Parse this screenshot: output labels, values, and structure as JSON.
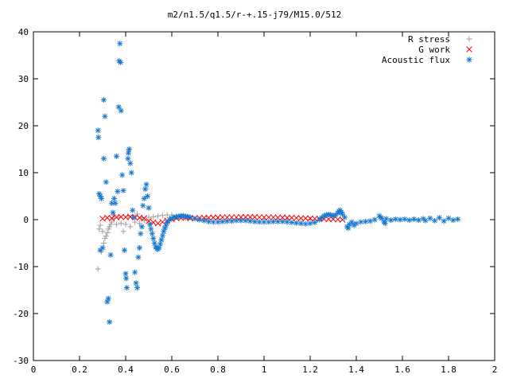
{
  "chart_data": {
    "type": "scatter",
    "title": "m2/n1.5/q1.5/r-+.15-j79/M15.0/512",
    "xlabel": "",
    "ylabel": "",
    "xlim": [
      0,
      2
    ],
    "ylim": [
      -30,
      40
    ],
    "x_ticks": [
      {
        "value": 0,
        "label": "0"
      },
      {
        "value": 0.2,
        "label": "0.2"
      },
      {
        "value": 0.4,
        "label": "0.4"
      },
      {
        "value": 0.6,
        "label": "0.6"
      },
      {
        "value": 0.8,
        "label": "0.8"
      },
      {
        "value": 1,
        "label": "1"
      },
      {
        "value": 1.2,
        "label": "1.2"
      },
      {
        "value": 1.4,
        "label": "1.4"
      },
      {
        "value": 1.6,
        "label": "1.6"
      },
      {
        "value": 1.8,
        "label": "1.8"
      },
      {
        "value": 2,
        "label": "2"
      }
    ],
    "y_ticks": [
      {
        "value": 40,
        "label": "40"
      },
      {
        "value": 30,
        "label": "30"
      },
      {
        "value": 20,
        "label": "20"
      },
      {
        "value": 10,
        "label": "10"
      },
      {
        "value": 0,
        "label": "0"
      },
      {
        "value": -10,
        "label": "-10"
      },
      {
        "value": -20,
        "label": "-20"
      },
      {
        "value": -30,
        "label": "-30"
      }
    ],
    "grid": false,
    "legend_position": "top-right",
    "series": [
      {
        "name": "R stress",
        "marker": "plus",
        "color": "#a0a0a0",
        "points": [
          [
            0.28,
            -10.5
          ],
          [
            0.285,
            -2.0
          ],
          [
            0.29,
            -1.2
          ],
          [
            0.295,
            -6.8
          ],
          [
            0.3,
            -2.5
          ],
          [
            0.305,
            -5.0
          ],
          [
            0.31,
            -4.0
          ],
          [
            0.315,
            -3.5
          ],
          [
            0.32,
            -2.8
          ],
          [
            0.325,
            -2.0
          ],
          [
            0.33,
            -1.5
          ],
          [
            0.335,
            -1.0
          ],
          [
            0.34,
            -0.5
          ],
          [
            0.345,
            0.3
          ],
          [
            0.35,
            1.0
          ],
          [
            0.36,
            -1.0
          ],
          [
            0.37,
            0.5
          ],
          [
            0.38,
            -0.8
          ],
          [
            0.39,
            -2.5
          ],
          [
            0.4,
            -1.0
          ],
          [
            0.41,
            0.8
          ],
          [
            0.42,
            -1.5
          ],
          [
            0.43,
            0.5
          ],
          [
            0.44,
            -0.5
          ],
          [
            0.45,
            1.2
          ],
          [
            0.46,
            -0.8
          ],
          [
            0.47,
            0.4
          ],
          [
            0.48,
            -0.2
          ],
          [
            0.5,
            0.5
          ],
          [
            0.52,
            0.6
          ],
          [
            0.54,
            0.8
          ],
          [
            0.56,
            0.9
          ],
          [
            0.58,
            1.0
          ],
          [
            0.6,
            1.0
          ],
          [
            0.62,
            0.8
          ],
          [
            0.64,
            0.5
          ],
          [
            0.66,
            0.3
          ],
          [
            0.7,
            0.2
          ],
          [
            0.75,
            0.2
          ],
          [
            0.8,
            0.1
          ],
          [
            0.9,
            0.1
          ],
          [
            1.0,
            0.1
          ],
          [
            1.1,
            0.0
          ],
          [
            1.2,
            0.0
          ]
        ]
      },
      {
        "name": "G work",
        "marker": "cross",
        "color": "#ff0000",
        "points": [
          [
            0.3,
            0.2
          ],
          [
            0.32,
            0.4
          ],
          [
            0.34,
            0.3
          ],
          [
            0.36,
            0.5
          ],
          [
            0.38,
            0.6
          ],
          [
            0.4,
            0.5
          ],
          [
            0.42,
            0.6
          ],
          [
            0.44,
            0.5
          ],
          [
            0.46,
            0.4
          ],
          [
            0.48,
            0.3
          ],
          [
            0.5,
            -0.3
          ],
          [
            0.52,
            -0.6
          ],
          [
            0.54,
            -0.8
          ],
          [
            0.56,
            -0.5
          ],
          [
            0.58,
            -0.2
          ],
          [
            0.6,
            0.1
          ],
          [
            0.62,
            0.3
          ],
          [
            0.64,
            0.4
          ],
          [
            0.66,
            0.4
          ],
          [
            0.68,
            0.3
          ],
          [
            0.7,
            0.3
          ],
          [
            0.72,
            0.35
          ],
          [
            0.74,
            0.4
          ],
          [
            0.76,
            0.4
          ],
          [
            0.78,
            0.45
          ],
          [
            0.8,
            0.45
          ],
          [
            0.82,
            0.5
          ],
          [
            0.84,
            0.5
          ],
          [
            0.86,
            0.5
          ],
          [
            0.88,
            0.5
          ],
          [
            0.9,
            0.55
          ],
          [
            0.92,
            0.55
          ],
          [
            0.94,
            0.55
          ],
          [
            0.96,
            0.55
          ],
          [
            0.98,
            0.5
          ],
          [
            1.0,
            0.5
          ],
          [
            1.02,
            0.5
          ],
          [
            1.04,
            0.5
          ],
          [
            1.06,
            0.45
          ],
          [
            1.08,
            0.45
          ],
          [
            1.1,
            0.4
          ],
          [
            1.12,
            0.4
          ],
          [
            1.14,
            0.35
          ],
          [
            1.16,
            0.3
          ],
          [
            1.18,
            0.3
          ],
          [
            1.2,
            0.25
          ],
          [
            1.22,
            0.2
          ],
          [
            1.24,
            0.2
          ],
          [
            1.26,
            0.15
          ],
          [
            1.28,
            0.1
          ],
          [
            1.3,
            0.1
          ],
          [
            1.32,
            0.05
          ],
          [
            1.34,
            0.0
          ]
        ]
      },
      {
        "name": "Acoustic flux",
        "marker": "star",
        "color": "#1878d0",
        "points": [
          [
            0.28,
            19.0
          ],
          [
            0.282,
            17.5
          ],
          [
            0.285,
            5.5
          ],
          [
            0.29,
            5.0
          ],
          [
            0.29,
            -6.5
          ],
          [
            0.295,
            4.5
          ],
          [
            0.3,
            -6.0
          ],
          [
            0.305,
            25.5
          ],
          [
            0.305,
            13.0
          ],
          [
            0.31,
            22.0
          ],
          [
            0.315,
            8.0
          ],
          [
            0.32,
            -17.5
          ],
          [
            0.325,
            -16.8
          ],
          [
            0.33,
            -21.8
          ],
          [
            0.335,
            -7.5
          ],
          [
            0.34,
            3.5
          ],
          [
            0.345,
            1.5
          ],
          [
            0.35,
            4.5
          ],
          [
            0.355,
            3.5
          ],
          [
            0.36,
            13.5
          ],
          [
            0.365,
            6.0
          ],
          [
            0.37,
            24.0
          ],
          [
            0.372,
            33.8
          ],
          [
            0.375,
            37.5
          ],
          [
            0.378,
            33.5
          ],
          [
            0.38,
            23.2
          ],
          [
            0.385,
            9.5
          ],
          [
            0.39,
            6.2
          ],
          [
            0.395,
            -6.5
          ],
          [
            0.4,
            -11.5
          ],
          [
            0.402,
            -12.5
          ],
          [
            0.405,
            -14.5
          ],
          [
            0.41,
            13.0
          ],
          [
            0.412,
            14.2
          ],
          [
            0.415,
            15.0
          ],
          [
            0.42,
            12.0
          ],
          [
            0.425,
            10.0
          ],
          [
            0.43,
            2.0
          ],
          [
            0.435,
            0.5
          ],
          [
            0.44,
            -11.2
          ],
          [
            0.445,
            -13.5
          ],
          [
            0.45,
            -14.5
          ],
          [
            0.455,
            -8.0
          ],
          [
            0.46,
            -6.0
          ],
          [
            0.465,
            -3.0
          ],
          [
            0.47,
            -1.5
          ],
          [
            0.475,
            3.0
          ],
          [
            0.48,
            4.5
          ],
          [
            0.485,
            6.5
          ],
          [
            0.49,
            7.5
          ],
          [
            0.495,
            5.0
          ],
          [
            0.5,
            2.5
          ],
          [
            0.505,
            -1.0
          ],
          [
            0.51,
            -2.0
          ],
          [
            0.515,
            -3.0
          ],
          [
            0.52,
            -4.0
          ],
          [
            0.525,
            -5.0
          ],
          [
            0.53,
            -5.8
          ],
          [
            0.535,
            -6.2
          ],
          [
            0.54,
            -6.3
          ],
          [
            0.545,
            -6.0
          ],
          [
            0.55,
            -5.2
          ],
          [
            0.555,
            -4.3
          ],
          [
            0.56,
            -3.4
          ],
          [
            0.565,
            -2.5
          ],
          [
            0.57,
            -1.8
          ],
          [
            0.575,
            -1.2
          ],
          [
            0.58,
            -0.6
          ],
          [
            0.59,
            0.0
          ],
          [
            0.6,
            0.3
          ],
          [
            0.61,
            0.5
          ],
          [
            0.62,
            0.6
          ],
          [
            0.63,
            0.7
          ],
          [
            0.64,
            0.8
          ],
          [
            0.65,
            0.8
          ],
          [
            0.66,
            0.7
          ],
          [
            0.67,
            0.6
          ],
          [
            0.68,
            0.5
          ],
          [
            0.7,
            0.2
          ],
          [
            0.72,
            0.0
          ],
          [
            0.74,
            -0.2
          ],
          [
            0.76,
            -0.4
          ],
          [
            0.78,
            -0.5
          ],
          [
            0.8,
            -0.5
          ],
          [
            0.82,
            -0.4
          ],
          [
            0.84,
            -0.3
          ],
          [
            0.86,
            -0.3
          ],
          [
            0.88,
            -0.2
          ],
          [
            0.9,
            -0.2
          ],
          [
            0.92,
            -0.2
          ],
          [
            0.94,
            -0.3
          ],
          [
            0.96,
            -0.4
          ],
          [
            0.98,
            -0.5
          ],
          [
            1.0,
            -0.5
          ],
          [
            1.02,
            -0.5
          ],
          [
            1.04,
            -0.4
          ],
          [
            1.06,
            -0.4
          ],
          [
            1.08,
            -0.4
          ],
          [
            1.1,
            -0.5
          ],
          [
            1.12,
            -0.6
          ],
          [
            1.14,
            -0.7
          ],
          [
            1.16,
            -0.8
          ],
          [
            1.18,
            -0.9
          ],
          [
            1.2,
            -0.8
          ],
          [
            1.22,
            -0.6
          ],
          [
            1.24,
            0.0
          ],
          [
            1.25,
            0.4
          ],
          [
            1.26,
            0.8
          ],
          [
            1.27,
            1.0
          ],
          [
            1.28,
            1.1
          ],
          [
            1.29,
            1.0
          ],
          [
            1.3,
            0.8
          ],
          [
            1.31,
            1.0
          ],
          [
            1.32,
            1.4
          ],
          [
            1.325,
            1.8
          ],
          [
            1.33,
            2.0
          ],
          [
            1.335,
            1.6
          ],
          [
            1.34,
            1.2
          ],
          [
            1.35,
            0.5
          ],
          [
            1.36,
            -1.5
          ],
          [
            1.365,
            -1.8
          ],
          [
            1.37,
            -1.0
          ],
          [
            1.38,
            -0.5
          ],
          [
            1.39,
            -1.2
          ],
          [
            1.4,
            -0.8
          ],
          [
            1.42,
            -0.5
          ],
          [
            1.44,
            -0.4
          ],
          [
            1.46,
            -0.3
          ],
          [
            1.48,
            0.0
          ],
          [
            1.5,
            0.8
          ],
          [
            1.505,
            0.5
          ],
          [
            1.51,
            0.3
          ],
          [
            1.52,
            -0.5
          ],
          [
            1.525,
            -0.8
          ],
          [
            1.53,
            0.2
          ],
          [
            1.55,
            -0.1
          ],
          [
            1.57,
            0.1
          ],
          [
            1.59,
            0.0
          ],
          [
            1.61,
            0.1
          ],
          [
            1.63,
            -0.1
          ],
          [
            1.65,
            0.1
          ],
          [
            1.67,
            -0.1
          ],
          [
            1.69,
            0.2
          ],
          [
            1.7,
            -0.2
          ],
          [
            1.72,
            0.3
          ],
          [
            1.74,
            -0.2
          ],
          [
            1.76,
            0.4
          ],
          [
            1.78,
            -0.3
          ],
          [
            1.8,
            0.3
          ],
          [
            1.82,
            -0.1
          ],
          [
            1.84,
            0.1
          ]
        ]
      }
    ]
  }
}
